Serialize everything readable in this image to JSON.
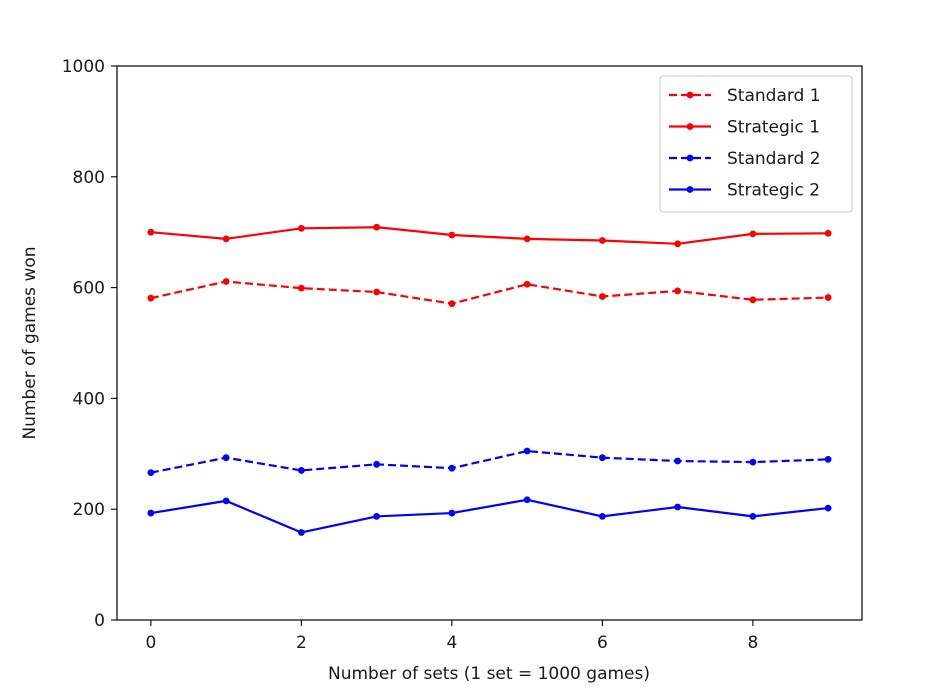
{
  "chart_data": {
    "type": "line",
    "title": "",
    "xlabel": "Number of sets (1 set = 1000 games)",
    "ylabel": "Number of games won",
    "xlim": [
      -0.45,
      9.45
    ],
    "ylim": [
      0,
      1000
    ],
    "xticks": [
      0,
      2,
      4,
      6,
      8
    ],
    "yticks": [
      0,
      200,
      400,
      600,
      800,
      1000
    ],
    "grid": false,
    "legend_position": "top-right",
    "x": [
      0,
      1,
      2,
      3,
      4,
      5,
      6,
      7,
      8,
      9
    ],
    "series": [
      {
        "name": "Standard 1",
        "color": "#ff0000",
        "line_style": "dashed",
        "marker": "dot",
        "values": [
          581,
          611,
          599,
          592,
          571,
          606,
          584,
          594,
          578,
          582
        ]
      },
      {
        "name": "Strategic 1",
        "color": "#ff0000",
        "line_style": "solid",
        "marker": "dot",
        "values": [
          700,
          688,
          707,
          709,
          695,
          688,
          685,
          679,
          697,
          698
        ]
      },
      {
        "name": "Standard 2",
        "color": "#0000ff",
        "line_style": "dashed",
        "marker": "dot",
        "values": [
          266,
          293,
          270,
          281,
          274,
          305,
          293,
          287,
          285,
          290
        ]
      },
      {
        "name": "Strategic 2",
        "color": "#0000ff",
        "line_style": "solid",
        "marker": "dot",
        "values": [
          193,
          215,
          158,
          187,
          193,
          217,
          187,
          204,
          187,
          202
        ]
      }
    ]
  }
}
